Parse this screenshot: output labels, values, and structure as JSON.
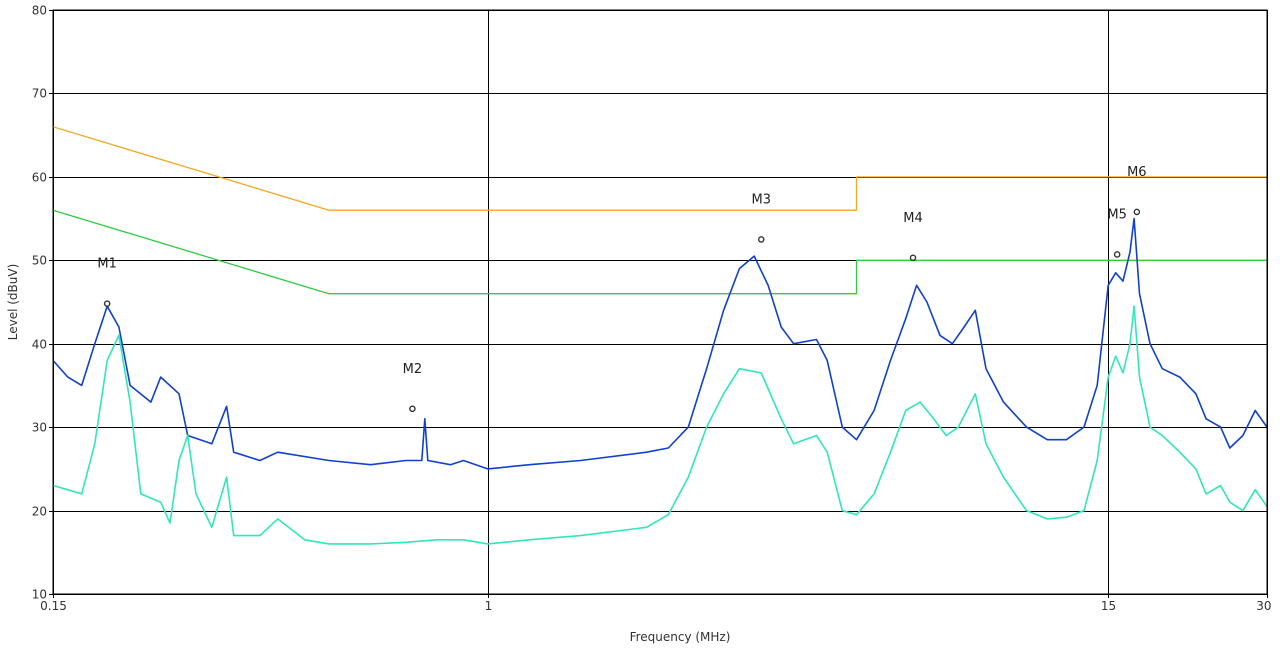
{
  "chart_data": {
    "type": "line",
    "title": "",
    "xlabel": "Frequency (MHz)",
    "ylabel": "Level (dBuV)",
    "x_scale": "log",
    "xlim": [
      0.15,
      30
    ],
    "ylim": [
      10,
      80
    ],
    "grid": true,
    "x_ticks": [
      {
        "value": 0.15,
        "label": "0.15"
      },
      {
        "value": 1,
        "label": "1"
      },
      {
        "value": 15,
        "label": "15"
      },
      {
        "value": 30,
        "label": "30"
      }
    ],
    "y_ticks": [
      10,
      20,
      30,
      40,
      50,
      60,
      70,
      80
    ],
    "series": [
      {
        "color": "#F5A623",
        "points": [
          [
            0.15,
            66
          ],
          [
            0.5,
            56
          ],
          [
            5,
            56
          ],
          [
            5,
            60
          ],
          [
            30,
            60
          ]
        ]
      },
      {
        "color": "#2ECC40",
        "points": [
          [
            0.15,
            56
          ],
          [
            0.5,
            46
          ],
          [
            5,
            46
          ],
          [
            5,
            50
          ],
          [
            30,
            50
          ]
        ]
      },
      {
        "color": "#1040D0",
        "points": [
          [
            0.15,
            38
          ],
          [
            0.16,
            36
          ],
          [
            0.17,
            35
          ],
          [
            0.18,
            40
          ],
          [
            0.19,
            44.5
          ],
          [
            0.2,
            42
          ],
          [
            0.21,
            35
          ],
          [
            0.23,
            33
          ],
          [
            0.24,
            36
          ],
          [
            0.26,
            34
          ],
          [
            0.27,
            29
          ],
          [
            0.3,
            28
          ],
          [
            0.32,
            32.5
          ],
          [
            0.33,
            27
          ],
          [
            0.37,
            26
          ],
          [
            0.4,
            27
          ],
          [
            0.5,
            26
          ],
          [
            0.6,
            25.5
          ],
          [
            0.7,
            26
          ],
          [
            0.75,
            26
          ],
          [
            0.76,
            31
          ],
          [
            0.77,
            26
          ],
          [
            0.85,
            25.5
          ],
          [
            0.9,
            26
          ],
          [
            1.0,
            25
          ],
          [
            1.2,
            25.5
          ],
          [
            1.5,
            26
          ],
          [
            2.0,
            27
          ],
          [
            2.2,
            27.5
          ],
          [
            2.4,
            30
          ],
          [
            2.6,
            37
          ],
          [
            2.8,
            44
          ],
          [
            3.0,
            49
          ],
          [
            3.2,
            50.5
          ],
          [
            3.4,
            47
          ],
          [
            3.6,
            42
          ],
          [
            3.8,
            40
          ],
          [
            4.2,
            40.5
          ],
          [
            4.4,
            38
          ],
          [
            4.7,
            30
          ],
          [
            5.0,
            28.5
          ],
          [
            5.4,
            32
          ],
          [
            5.8,
            38
          ],
          [
            6.2,
            43
          ],
          [
            6.5,
            47
          ],
          [
            6.8,
            45
          ],
          [
            7.2,
            41
          ],
          [
            7.6,
            40
          ],
          [
            8.0,
            42
          ],
          [
            8.4,
            44
          ],
          [
            8.8,
            37
          ],
          [
            9.5,
            33
          ],
          [
            10.5,
            30
          ],
          [
            11.5,
            28.5
          ],
          [
            12.5,
            28.5
          ],
          [
            13.5,
            30
          ],
          [
            14.3,
            35
          ],
          [
            15.0,
            47
          ],
          [
            15.5,
            48.5
          ],
          [
            16.0,
            47.5
          ],
          [
            16.5,
            51
          ],
          [
            16.8,
            55
          ],
          [
            17.2,
            46
          ],
          [
            18.0,
            40
          ],
          [
            19.0,
            37
          ],
          [
            20.5,
            36
          ],
          [
            22.0,
            34
          ],
          [
            23.0,
            31
          ],
          [
            24.5,
            30
          ],
          [
            25.5,
            27.5
          ],
          [
            27.0,
            29
          ],
          [
            28.5,
            32
          ],
          [
            30.0,
            30
          ]
        ]
      },
      {
        "color": "#2EE8B8",
        "points": [
          [
            0.15,
            23
          ],
          [
            0.16,
            22.5
          ],
          [
            0.17,
            22
          ],
          [
            0.18,
            28
          ],
          [
            0.19,
            38
          ],
          [
            0.2,
            41
          ],
          [
            0.21,
            33
          ],
          [
            0.22,
            22
          ],
          [
            0.24,
            21
          ],
          [
            0.25,
            18.5
          ],
          [
            0.26,
            26
          ],
          [
            0.27,
            29
          ],
          [
            0.28,
            22
          ],
          [
            0.3,
            18
          ],
          [
            0.32,
            24
          ],
          [
            0.33,
            17
          ],
          [
            0.37,
            17
          ],
          [
            0.4,
            19
          ],
          [
            0.45,
            16.5
          ],
          [
            0.5,
            16
          ],
          [
            0.6,
            16
          ],
          [
            0.7,
            16.2
          ],
          [
            0.8,
            16.5
          ],
          [
            0.9,
            16.5
          ],
          [
            1.0,
            16
          ],
          [
            1.2,
            16.5
          ],
          [
            1.5,
            17
          ],
          [
            2.0,
            18
          ],
          [
            2.2,
            19.5
          ],
          [
            2.4,
            24
          ],
          [
            2.6,
            30
          ],
          [
            2.8,
            34
          ],
          [
            3.0,
            37
          ],
          [
            3.3,
            36.5
          ],
          [
            3.6,
            31
          ],
          [
            3.8,
            28
          ],
          [
            4.2,
            29
          ],
          [
            4.4,
            27
          ],
          [
            4.7,
            20
          ],
          [
            5.0,
            19.5
          ],
          [
            5.4,
            22
          ],
          [
            5.8,
            27
          ],
          [
            6.2,
            32
          ],
          [
            6.6,
            33
          ],
          [
            7.0,
            31
          ],
          [
            7.4,
            29
          ],
          [
            7.8,
            30
          ],
          [
            8.4,
            34
          ],
          [
            8.8,
            28
          ],
          [
            9.5,
            24
          ],
          [
            10.5,
            20
          ],
          [
            11.5,
            19
          ],
          [
            12.5,
            19.2
          ],
          [
            13.5,
            20
          ],
          [
            14.3,
            26
          ],
          [
            15.0,
            36
          ],
          [
            15.5,
            38.5
          ],
          [
            16.0,
            36.5
          ],
          [
            16.5,
            40
          ],
          [
            16.8,
            44.5
          ],
          [
            17.2,
            36
          ],
          [
            18.0,
            30
          ],
          [
            19.0,
            29
          ],
          [
            20.5,
            27
          ],
          [
            22.0,
            25
          ],
          [
            23.0,
            22
          ],
          [
            24.5,
            23
          ],
          [
            25.5,
            21
          ],
          [
            27.0,
            20
          ],
          [
            28.5,
            22.5
          ],
          [
            30.0,
            20.5
          ]
        ]
      }
    ],
    "markers": [
      {
        "label": "M1",
        "x": 0.19,
        "y": 44.8
      },
      {
        "label": "M2",
        "x": 0.72,
        "y": 32.2
      },
      {
        "label": "M3",
        "x": 3.3,
        "y": 52.5
      },
      {
        "label": "M4",
        "x": 6.4,
        "y": 50.3
      },
      {
        "label": "M5",
        "x": 15.6,
        "y": 50.7
      },
      {
        "label": "M6",
        "x": 17.0,
        "y": 55.8
      }
    ]
  }
}
